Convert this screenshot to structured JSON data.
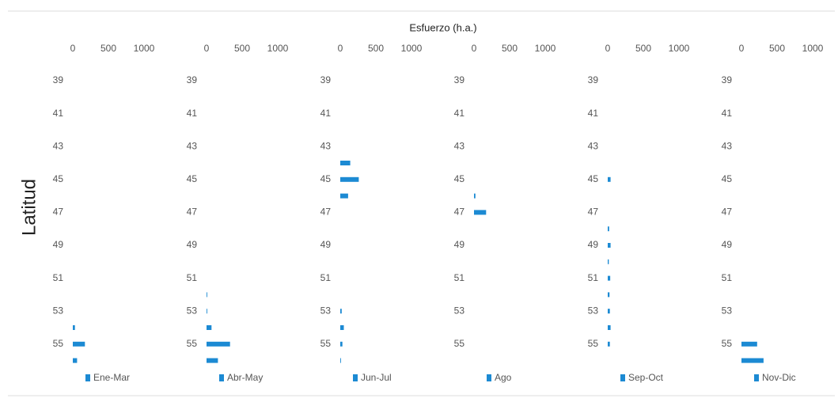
{
  "xlabel": "Esfuerzo (h.a.)",
  "ylabel": "Latitud",
  "chart_data": [
    {
      "type": "bar",
      "orientation": "horizontal",
      "categories": [
        "39",
        null,
        "41",
        null,
        "43",
        null,
        "45",
        null,
        "47",
        null,
        "49",
        null,
        "51",
        null,
        "53",
        null,
        "55",
        null
      ],
      "series": [
        {
          "name": "Ene-Mar",
          "color": "#1c8ad3",
          "values": [
            null,
            null,
            null,
            null,
            null,
            null,
            null,
            null,
            null,
            null,
            null,
            null,
            null,
            null,
            null,
            30,
            170,
            60
          ]
        }
      ],
      "xlim": [
        0,
        1200
      ],
      "xticks": [
        0,
        500,
        1000
      ]
    },
    {
      "type": "bar",
      "orientation": "horizontal",
      "categories": [
        "39",
        null,
        "41",
        null,
        "43",
        null,
        "45",
        null,
        "47",
        null,
        "49",
        null,
        "51",
        null,
        "53",
        null,
        "55",
        null
      ],
      "series": [
        {
          "name": "Abr-May",
          "color": "#1c8ad3",
          "values": [
            null,
            null,
            null,
            null,
            null,
            null,
            null,
            null,
            null,
            null,
            null,
            null,
            null,
            10,
            10,
            70,
            330,
            160
          ]
        }
      ],
      "xlim": [
        0,
        1200
      ],
      "xticks": [
        0,
        500,
        1000
      ]
    },
    {
      "type": "bar",
      "orientation": "horizontal",
      "categories": [
        "39",
        null,
        "41",
        null,
        "43",
        null,
        "45",
        null,
        "47",
        null,
        "49",
        null,
        "51",
        null,
        "53",
        null,
        "55",
        null
      ],
      "series": [
        {
          "name": "Jun-Jul",
          "color": "#1c8ad3",
          "values": [
            null,
            null,
            null,
            null,
            null,
            140,
            260,
            110,
            null,
            null,
            null,
            null,
            null,
            null,
            20,
            50,
            30,
            10
          ]
        }
      ],
      "xlim": [
        0,
        1200
      ],
      "xticks": [
        0,
        500,
        1000
      ]
    },
    {
      "type": "bar",
      "orientation": "horizontal",
      "categories": [
        "39",
        null,
        "41",
        null,
        "43",
        null,
        "45",
        null,
        "47",
        null,
        "49",
        null,
        "51",
        null,
        "53",
        null,
        "55",
        null
      ],
      "series": [
        {
          "name": "Ago",
          "color": "#1c8ad3",
          "values": [
            null,
            null,
            null,
            null,
            null,
            null,
            null,
            20,
            170,
            null,
            null,
            null,
            null,
            null,
            null,
            null,
            null,
            null
          ]
        }
      ],
      "xlim": [
        0,
        1200
      ],
      "xticks": [
        0,
        500,
        1000
      ]
    },
    {
      "type": "bar",
      "orientation": "horizontal",
      "categories": [
        "39",
        null,
        "41",
        null,
        "43",
        null,
        "45",
        null,
        "47",
        null,
        "49",
        null,
        "51",
        null,
        "53",
        null,
        "55",
        null
      ],
      "series": [
        {
          "name": "Sep-Oct",
          "color": "#1c8ad3",
          "values": [
            null,
            null,
            null,
            null,
            null,
            null,
            40,
            null,
            null,
            20,
            40,
            15,
            35,
            25,
            30,
            40,
            30,
            null
          ]
        }
      ],
      "xlim": [
        0,
        1200
      ],
      "xticks": [
        0,
        500,
        1000
      ]
    },
    {
      "type": "bar",
      "orientation": "horizontal",
      "categories": [
        "39",
        null,
        "41",
        null,
        "43",
        null,
        "45",
        null,
        "47",
        null,
        "49",
        null,
        "51",
        null,
        "53",
        null,
        "55",
        null
      ],
      "series": [
        {
          "name": "Nov-Dic",
          "color": "#1c8ad3",
          "values": [
            null,
            null,
            null,
            null,
            null,
            null,
            null,
            null,
            null,
            null,
            null,
            null,
            null,
            null,
            null,
            null,
            220,
            310
          ]
        }
      ],
      "xlim": [
        0,
        1200
      ],
      "xticks": [
        0,
        500,
        1000
      ]
    }
  ]
}
